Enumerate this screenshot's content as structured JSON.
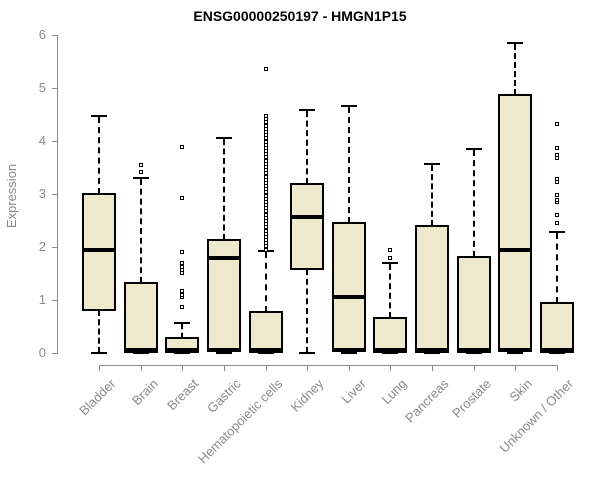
{
  "title": "ENSG00000250197 - HMGN1P15",
  "chart_data": {
    "type": "boxplot",
    "title": "ENSG00000250197 - HMGN1P15",
    "ylabel": "Expression",
    "xlabel": "",
    "ylim": [
      0,
      6
    ],
    "yticks": [
      0,
      1,
      2,
      3,
      4,
      5,
      6
    ],
    "grid": false,
    "legend": "none",
    "categories": [
      "Bladder",
      "Brain",
      "Breast",
      "Gastric",
      "Hematopoietic cells",
      "Kidney",
      "Liver",
      "Lung",
      "Pancreas",
      "Prostate",
      "Skin",
      "Unknown / Other"
    ],
    "boxes": [
      {
        "category": "Bladder",
        "low": 0,
        "q1": 0.82,
        "median": 1.95,
        "q3": 3.0,
        "high": 4.47,
        "outliers": []
      },
      {
        "category": "Brain",
        "low": 0,
        "q1": 0.02,
        "median": 0.05,
        "q3": 1.32,
        "high": 3.3,
        "outliers": [
          3.42,
          3.55
        ]
      },
      {
        "category": "Breast",
        "low": 0,
        "q1": 0.02,
        "median": 0.05,
        "q3": 0.28,
        "high": 0.57,
        "outliers": [
          0.87,
          1.05,
          1.1,
          1.17,
          1.51,
          1.57,
          1.63,
          1.7,
          1.91,
          2.92,
          3.88
        ]
      },
      {
        "category": "Gastric",
        "low": 0,
        "q1": 0.03,
        "median": 1.79,
        "q3": 2.13,
        "high": 4.06,
        "outliers": []
      },
      {
        "category": "Hematopoietic cells",
        "low": 0,
        "q1": 0.02,
        "median": 0.05,
        "q3": 0.77,
        "high": 1.92,
        "outliers": [
          1.95,
          2.01,
          2.07,
          2.13,
          2.19,
          2.25,
          2.31,
          2.37,
          2.43,
          2.49,
          2.55,
          2.61,
          2.67,
          2.73,
          2.79,
          2.85,
          2.91,
          2.97,
          3.03,
          3.09,
          3.15,
          3.21,
          3.27,
          3.33,
          3.39,
          3.45,
          3.51,
          3.57,
          3.63,
          3.69,
          3.75,
          3.81,
          3.87,
          3.93,
          3.99,
          4.05,
          4.11,
          4.17,
          4.23,
          4.29,
          4.35,
          4.41,
          4.47,
          5.36
        ]
      },
      {
        "category": "Kidney",
        "low": 0,
        "q1": 1.58,
        "median": 2.57,
        "q3": 3.19,
        "high": 4.58,
        "outliers": []
      },
      {
        "category": "Liver",
        "low": 0,
        "q1": 0.03,
        "median": 1.05,
        "q3": 2.45,
        "high": 4.66,
        "outliers": []
      },
      {
        "category": "Lung",
        "low": 0,
        "q1": 0.02,
        "median": 0.05,
        "q3": 0.66,
        "high": 1.7,
        "outliers": [
          1.79,
          1.94
        ]
      },
      {
        "category": "Pancreas",
        "low": 0,
        "q1": 0.02,
        "median": 0.05,
        "q3": 2.4,
        "high": 3.57,
        "outliers": []
      },
      {
        "category": "Prostate",
        "low": 0,
        "q1": 0.02,
        "median": 0.05,
        "q3": 1.81,
        "high": 3.84,
        "outliers": []
      },
      {
        "category": "Skin",
        "low": 0,
        "q1": 0.03,
        "median": 1.94,
        "q3": 4.87,
        "high": 5.84,
        "outliers": []
      },
      {
        "category": "Unknown / Other",
        "low": 0,
        "q1": 0.02,
        "median": 0.05,
        "q3": 0.94,
        "high": 2.29,
        "outliers": [
          2.45,
          2.6,
          2.84,
          2.88,
          2.98,
          3.22,
          3.28,
          3.68,
          3.74,
          3.87,
          4.32
        ]
      }
    ],
    "colors": {
      "box_fill": "#EEE8CD",
      "box_border": "#000000",
      "median": "#000000",
      "whisker": "#000000",
      "outlier_border": "#000000",
      "outlier_fill": "#FFFFFF",
      "axis": "#8A8A8A",
      "title": "#000000",
      "background": "#FFFFFF"
    }
  }
}
